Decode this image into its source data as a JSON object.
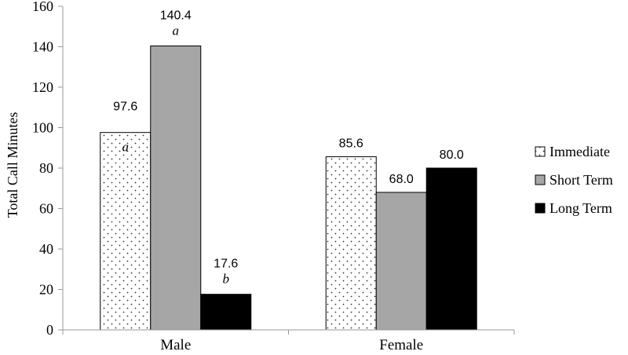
{
  "chart_data": {
    "type": "bar",
    "categories": [
      "Male",
      "Female"
    ],
    "series": [
      {
        "name": "Immediate",
        "values": [
          97.6,
          85.6
        ],
        "labels": [
          "97.6",
          "85.6"
        ],
        "fill": "dots",
        "color": "#ffffff"
      },
      {
        "name": "Short Term",
        "values": [
          140.4,
          68.0
        ],
        "labels": [
          "140.4",
          "68.0"
        ],
        "fill": "solid",
        "color": "#a6a6a6"
      },
      {
        "name": "Long Term",
        "values": [
          17.6,
          80.0
        ],
        "labels": [
          "17.6",
          "80.0"
        ],
        "fill": "solid",
        "color": "#000000"
      }
    ],
    "annotations": [
      {
        "category": "Male",
        "series": "Immediate",
        "text": "a",
        "placement": "inside-top"
      },
      {
        "category": "Male",
        "series": "Short Term",
        "text": "a",
        "placement": "above-label"
      },
      {
        "category": "Male",
        "series": "Long Term",
        "text": "b",
        "placement": "above-label"
      }
    ],
    "ylabel": "Total Call Minutes",
    "xlabel": "",
    "ylim": [
      0,
      160
    ],
    "yticks": [
      "0",
      "20",
      "40",
      "60",
      "80",
      "100",
      "120",
      "140",
      "160"
    ],
    "grid": false,
    "legend_position": "right"
  }
}
